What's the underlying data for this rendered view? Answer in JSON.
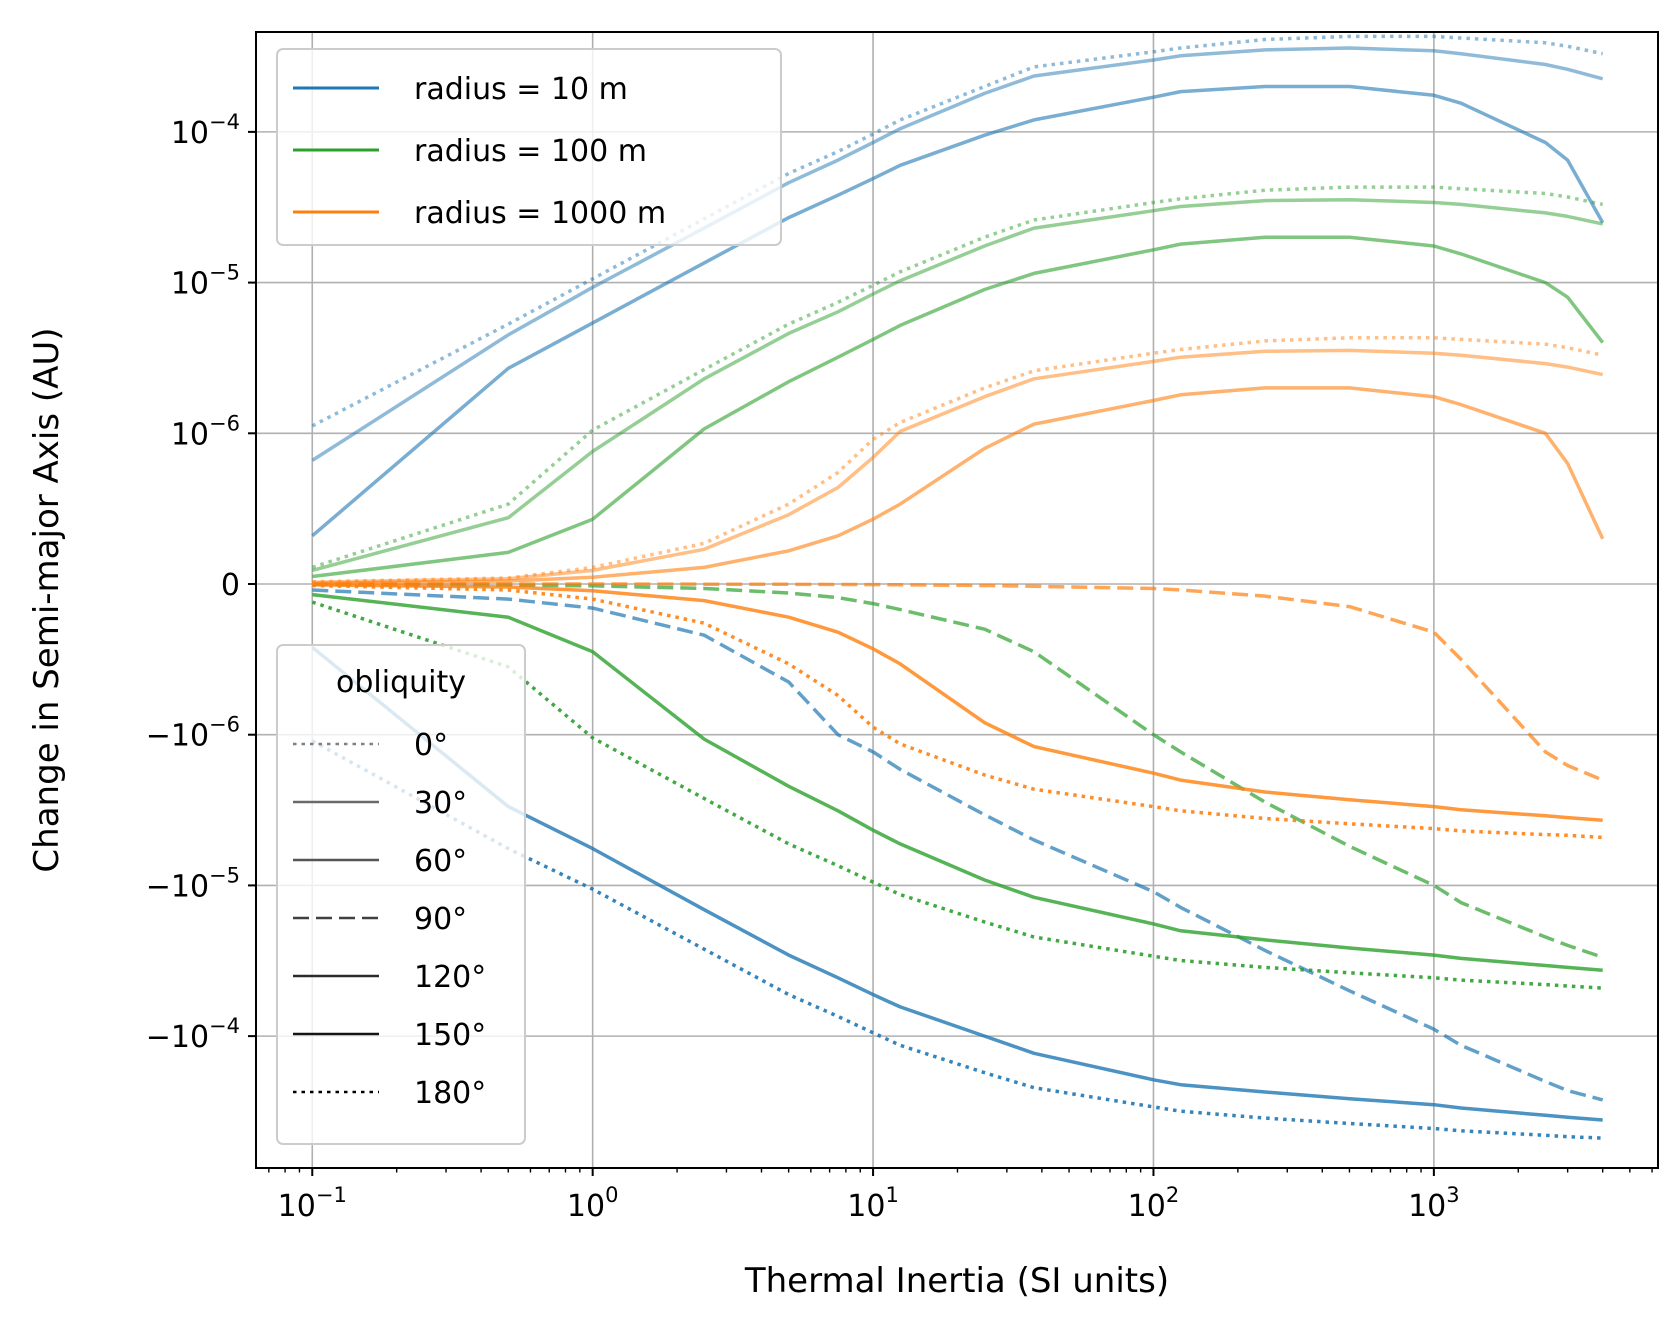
{
  "chart_data": {
    "type": "line",
    "xscale": "log",
    "yscale": "symlog",
    "xlabel": "Thermal Inertia (SI units)",
    "ylabel": "Change in Semi-major Axis (AU)",
    "xlim": [
      0.063,
      6300
    ],
    "ylim": [
      -0.00075,
      0.00046
    ],
    "grid": true,
    "x_ticks": [
      {
        "value": 0.1,
        "base": "10",
        "exp": "−1"
      },
      {
        "value": 1,
        "base": "10",
        "exp": "0"
      },
      {
        "value": 10,
        "base": "10",
        "exp": "1"
      },
      {
        "value": 100,
        "base": "10",
        "exp": "2"
      },
      {
        "value": 1000,
        "base": "10",
        "exp": "3"
      }
    ],
    "y_ticks": [
      {
        "value": 0.0001,
        "prefix": "10",
        "exp": "−4"
      },
      {
        "value": 1e-05,
        "prefix": "10",
        "exp": "−5"
      },
      {
        "value": 1e-06,
        "prefix": "10",
        "exp": "−6"
      },
      {
        "value": 0,
        "prefix": "0",
        "exp": ""
      },
      {
        "value": -1e-06,
        "prefix": "−10",
        "exp": "−6"
      },
      {
        "value": -1e-05,
        "prefix": "−10",
        "exp": "−5"
      },
      {
        "value": -0.0001,
        "prefix": "−10",
        "exp": "−4"
      }
    ],
    "radius_legend": {
      "location": "upper left",
      "entries": [
        {
          "label": "radius = 10 m",
          "color": "#1f77b4"
        },
        {
          "label": "radius = 100 m",
          "color": "#2ca02c"
        },
        {
          "label": "radius = 1000 m",
          "color": "#ff7f0e"
        }
      ]
    },
    "obliquity_legend": {
      "title": "obliquity",
      "location": "lower left",
      "entries": [
        {
          "label": "0°",
          "style": "dotted",
          "color": "#808080"
        },
        {
          "label": "30°",
          "style": "solid",
          "color": "#6a6a6a"
        },
        {
          "label": "60°",
          "style": "solid",
          "color": "#555555"
        },
        {
          "label": "90°",
          "style": "dashed",
          "color": "#404040"
        },
        {
          "label": "120°",
          "style": "solid",
          "color": "#2b2b2b"
        },
        {
          "label": "150°",
          "style": "solid",
          "color": "#151515"
        },
        {
          "label": "180°",
          "style": "dotted",
          "color": "#000000"
        }
      ]
    },
    "x": [
      0.1,
      0.5,
      1,
      2.5,
      5,
      7.5,
      10,
      12.5,
      25,
      37.5,
      100,
      125,
      250,
      500,
      1000,
      1250,
      2500,
      3000,
      4000
    ],
    "series": [
      {
        "name": "r10 obl0",
        "color": "#1f77b4",
        "style": "dotted",
        "alpha": 0.5,
        "values": [
          1.12e-06,
          5.3e-06,
          1.06e-05,
          2.65e-05,
          5.3e-05,
          7.4e-05,
          9.7e-05,
          0.00012,
          0.0002,
          0.00027,
          0.00034,
          0.00036,
          0.00041,
          0.00043,
          0.00043,
          0.00042,
          0.00039,
          0.00037,
          0.00033
        ]
      },
      {
        "name": "r10 obl30",
        "color": "#1f77b4",
        "style": "solid",
        "alpha": 0.5,
        "values": [
          8.2e-07,
          4.5e-06,
          9.3e-06,
          2.3e-05,
          4.6e-05,
          6.5e-05,
          8.5e-05,
          0.000105,
          0.00018,
          0.000235,
          0.0003,
          0.00032,
          0.00035,
          0.00036,
          0.000345,
          0.00033,
          0.00028,
          0.00026,
          0.000225
        ]
      },
      {
        "name": "r10 obl60",
        "color": "#1f77b4",
        "style": "solid",
        "alpha": 0.6,
        "values": [
          3.2e-07,
          2.7e-06,
          5.4e-06,
          1.35e-05,
          2.7e-05,
          3.8e-05,
          4.9e-05,
          6e-05,
          9.5e-05,
          0.00012,
          0.00017,
          0.000185,
          0.0002,
          0.0002,
          0.000175,
          0.000155,
          8.5e-05,
          6.5e-05,
          2.5e-05
        ]
      },
      {
        "name": "r10 obl90",
        "color": "#1f77b4",
        "style": "dashed",
        "alpha": 0.7,
        "values": [
          -4e-08,
          -1e-07,
          -1.6e-07,
          -3.4e-07,
          -6.5e-07,
          -1e-06,
          -1.3e-06,
          -1.7e-06,
          -3.4e-06,
          -5e-06,
          -1.1e-05,
          -1.4e-05,
          -2.7e-05,
          -5e-05,
          -9e-05,
          -0.000115,
          -0.0002,
          -0.00023,
          -0.000265
        ]
      },
      {
        "name": "r10 obl150",
        "color": "#1f77b4",
        "style": "solid",
        "alpha": 0.8,
        "values": [
          -4.2e-07,
          -3e-06,
          -5.7e-06,
          -1.45e-05,
          -2.9e-05,
          -4.1e-05,
          -5.3e-05,
          -6.4e-05,
          -0.0001,
          -0.00013,
          -0.000195,
          -0.00021,
          -0.000235,
          -0.00026,
          -0.000285,
          -0.0003,
          -0.000335,
          -0.000345,
          -0.00036
        ]
      },
      {
        "name": "r10 obl180",
        "color": "#1f77b4",
        "style": "dotted",
        "alpha": 0.9,
        "values": [
          -1.1e-06,
          -5.7e-06,
          -1.06e-05,
          -2.65e-05,
          -5.3e-05,
          -7.4e-05,
          -9.5e-05,
          -0.000115,
          -0.000175,
          -0.00022,
          -0.000295,
          -0.000315,
          -0.00035,
          -0.00038,
          -0.00041,
          -0.000425,
          -0.000455,
          -0.000465,
          -0.000475
        ]
      },
      {
        "name": "r100 obl0",
        "color": "#2ca02c",
        "style": "dotted",
        "alpha": 0.5,
        "values": [
          1.1e-07,
          5.3e-07,
          1.05e-06,
          2.65e-06,
          5.3e-06,
          7.4e-06,
          9.6e-06,
          1.18e-05,
          2e-05,
          2.6e-05,
          3.4e-05,
          3.6e-05,
          4.1e-05,
          4.3e-05,
          4.3e-05,
          4.2e-05,
          3.9e-05,
          3.7e-05,
          3.3e-05
        ]
      },
      {
        "name": "r100 obl30",
        "color": "#2ca02c",
        "style": "solid",
        "alpha": 0.5,
        "values": [
          9e-08,
          4.4e-07,
          8.8e-07,
          2.3e-06,
          4.6e-06,
          6.4e-06,
          8.4e-06,
          1.03e-05,
          1.75e-05,
          2.3e-05,
          3e-05,
          3.2e-05,
          3.5e-05,
          3.55e-05,
          3.4e-05,
          3.3e-05,
          2.9e-05,
          2.75e-05,
          2.45e-05
        ]
      },
      {
        "name": "r100 obl60",
        "color": "#2ca02c",
        "style": "solid",
        "alpha": 0.6,
        "values": [
          5e-08,
          2.1e-07,
          4.3e-07,
          1.07e-06,
          2.2e-06,
          3.2e-06,
          4.2e-06,
          5.2e-06,
          9e-06,
          1.15e-05,
          1.65e-05,
          1.8e-05,
          2e-05,
          2e-05,
          1.75e-05,
          1.55e-05,
          1e-05,
          8e-06,
          4e-06
        ]
      },
      {
        "name": "r100 obl90",
        "color": "#2ca02c",
        "style": "dashed",
        "alpha": 0.7,
        "values": [
          -3e-09,
          -7e-09,
          -1.2e-08,
          -3e-08,
          -6e-08,
          -9e-08,
          -1.3e-07,
          -1.7e-07,
          -3e-07,
          -4.5e-07,
          -1e-06,
          -1.3e-06,
          -2.8e-06,
          -5.5e-06,
          -1e-05,
          -1.3e-05,
          -2.2e-05,
          -2.5e-05,
          -3e-05
        ]
      },
      {
        "name": "r100 obl150",
        "color": "#2ca02c",
        "style": "solid",
        "alpha": 0.8,
        "values": [
          -7e-08,
          -2.2e-07,
          -4.5e-07,
          -1.07e-06,
          -2.2e-06,
          -3.2e-06,
          -4.3e-06,
          -5.3e-06,
          -9.2e-06,
          -1.2e-05,
          -1.8e-05,
          -2e-05,
          -2.3e-05,
          -2.6e-05,
          -2.9e-05,
          -3.05e-05,
          -3.4e-05,
          -3.5e-05,
          -3.65e-05
        ]
      },
      {
        "name": "r100 obl180",
        "color": "#2ca02c",
        "style": "dotted",
        "alpha": 0.9,
        "values": [
          -1.2e-07,
          -5.5e-07,
          -1.05e-06,
          -2.65e-06,
          -5.3e-06,
          -7.4e-06,
          -9.5e-06,
          -1.15e-05,
          -1.75e-05,
          -2.2e-05,
          -2.95e-05,
          -3.15e-05,
          -3.5e-05,
          -3.8e-05,
          -4.1e-05,
          -4.25e-05,
          -4.55e-05,
          -4.65e-05,
          -4.8e-05
        ]
      },
      {
        "name": "r1000 obl0",
        "color": "#ff7f0e",
        "style": "dotted",
        "alpha": 0.5,
        "values": [
          1.5e-08,
          4e-08,
          1.1e-07,
          2.7e-07,
          5.3e-07,
          7.4e-07,
          9.6e-07,
          1.18e-06,
          2e-06,
          2.6e-06,
          3.4e-06,
          3.6e-06,
          4.1e-06,
          4.3e-06,
          4.3e-06,
          4.2e-06,
          3.9e-06,
          3.7e-06,
          3.3e-06
        ]
      },
      {
        "name": "r1000 obl30",
        "color": "#ff7f0e",
        "style": "solid",
        "alpha": 0.5,
        "values": [
          1.2e-08,
          3.5e-08,
          9e-08,
          2.3e-07,
          4.6e-07,
          6.4e-07,
          8.4e-07,
          1.03e-06,
          1.75e-06,
          2.3e-06,
          3e-06,
          3.2e-06,
          3.5e-06,
          3.55e-06,
          3.4e-06,
          3.3e-06,
          2.9e-06,
          2.75e-06,
          2.45e-06
        ]
      },
      {
        "name": "r1000 obl60",
        "color": "#ff7f0e",
        "style": "solid",
        "alpha": 0.6,
        "values": [
          5e-09,
          2e-08,
          4.5e-08,
          1.1e-07,
          2.2e-07,
          3.2e-07,
          4.3e-07,
          5.3e-07,
          9e-07,
          1.15e-06,
          1.65e-06,
          1.8e-06,
          2e-06,
          2e-06,
          1.75e-06,
          1.55e-06,
          1e-06,
          8e-07,
          3e-07
        ]
      },
      {
        "name": "r1000 obl90",
        "color": "#ff7f0e",
        "style": "dashed",
        "alpha": 0.7,
        "values": [
          0,
          0,
          0,
          -1e-09,
          -2e-09,
          -3e-09,
          -4e-09,
          -5e-09,
          -1e-08,
          -1.5e-08,
          -3e-08,
          -4e-08,
          -8e-08,
          -1.5e-07,
          -3.2e-07,
          -5e-07,
          -1.3e-06,
          -1.6e-06,
          -2e-06
        ]
      },
      {
        "name": "r1000 obl150",
        "color": "#ff7f0e",
        "style": "solid",
        "alpha": 0.8,
        "values": [
          -5e-09,
          -2e-08,
          -4.5e-08,
          -1.1e-07,
          -2.2e-07,
          -3.2e-07,
          -4.3e-07,
          -5.3e-07,
          -9.2e-07,
          -1.2e-06,
          -1.8e-06,
          -2e-06,
          -2.4e-06,
          -2.7e-06,
          -3e-06,
          -3.15e-06,
          -3.45e-06,
          -3.55e-06,
          -3.7e-06
        ]
      },
      {
        "name": "r1000 obl180",
        "color": "#ff7f0e",
        "style": "dotted",
        "alpha": 0.9,
        "values": [
          -1e-08,
          -4e-08,
          -1e-07,
          -2.6e-07,
          -5.3e-07,
          -7.4e-07,
          -9.5e-07,
          -1.15e-06,
          -1.85e-06,
          -2.3e-06,
          -3e-06,
          -3.2e-06,
          -3.6e-06,
          -3.9e-06,
          -4.2e-06,
          -4.35e-06,
          -4.6e-06,
          -4.65e-06,
          -4.8e-06
        ]
      }
    ]
  }
}
